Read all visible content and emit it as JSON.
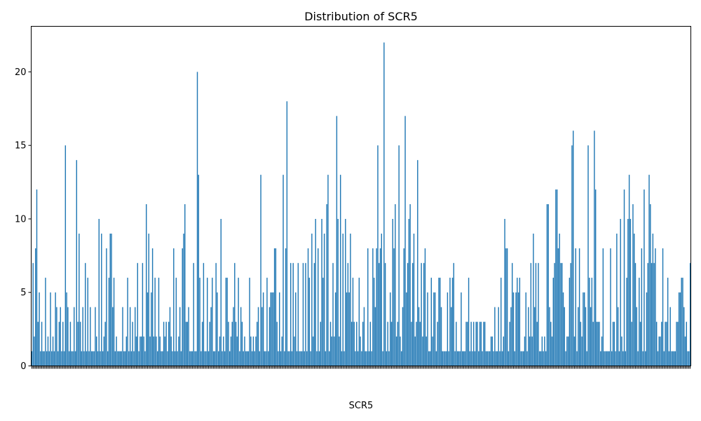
{
  "chart_data": {
    "type": "bar",
    "title": "Distribution of SCR5",
    "xlabel": "SCR5",
    "ylabel": "",
    "ylim": [
      0,
      23.1
    ],
    "yticks": [
      0,
      5,
      10,
      15,
      20
    ],
    "bar_color": "#1f77b4",
    "grid": false,
    "values": [
      1,
      7,
      2,
      8,
      12,
      3,
      5,
      1,
      3,
      1,
      1,
      6,
      1,
      2,
      1,
      5,
      1,
      2,
      1,
      5,
      4,
      1,
      3,
      4,
      1,
      3,
      1,
      15,
      5,
      4,
      1,
      3,
      1,
      1,
      4,
      1,
      14,
      3,
      9,
      3,
      1,
      4,
      1,
      7,
      1,
      6,
      1,
      4,
      1,
      1,
      1,
      4,
      2,
      1,
      10,
      1,
      9,
      1,
      2,
      3,
      8,
      1,
      6,
      9,
      9,
      4,
      6,
      1,
      2,
      1,
      1,
      1,
      1,
      4,
      1,
      1,
      2,
      6,
      1,
      4,
      1,
      3,
      1,
      4,
      2,
      7,
      1,
      2,
      2,
      7,
      2,
      1,
      11,
      5,
      9,
      2,
      5,
      8,
      2,
      6,
      2,
      1,
      6,
      2,
      1,
      1,
      3,
      2,
      3,
      1,
      3,
      4,
      2,
      1,
      8,
      1,
      6,
      1,
      2,
      4,
      1,
      8,
      9,
      11,
      3,
      3,
      4,
      1,
      1,
      1,
      7,
      1,
      1,
      20,
      13,
      6,
      1,
      3,
      7,
      1,
      1,
      6,
      1,
      3,
      4,
      6,
      1,
      1,
      7,
      5,
      1,
      2,
      10,
      1,
      2,
      1,
      6,
      6,
      3,
      1,
      2,
      3,
      4,
      7,
      3,
      2,
      6,
      1,
      4,
      3,
      1,
      2,
      1,
      1,
      1,
      6,
      2,
      1,
      2,
      1,
      2,
      3,
      4,
      1,
      13,
      4,
      5,
      1,
      1,
      6,
      1,
      4,
      5,
      5,
      5,
      8,
      8,
      3,
      1,
      5,
      1,
      2,
      13,
      1,
      8,
      18,
      1,
      1,
      7,
      1,
      7,
      2,
      5,
      1,
      7,
      1,
      1,
      1,
      7,
      1,
      7,
      1,
      8,
      6,
      1,
      9,
      2,
      7,
      10,
      1,
      8,
      1,
      3,
      10,
      6,
      9,
      1,
      11,
      13,
      1,
      3,
      2,
      7,
      2,
      5,
      17,
      10,
      2,
      13,
      1,
      9,
      1,
      10,
      5,
      7,
      5,
      9,
      3,
      6,
      3,
      1,
      3,
      1,
      6,
      2,
      1,
      3,
      4,
      1,
      1,
      8,
      1,
      3,
      1,
      8,
      6,
      4,
      8,
      15,
      7,
      8,
      9,
      1,
      22,
      7,
      1,
      3,
      1,
      5,
      3,
      10,
      8,
      11,
      2,
      3,
      15,
      2,
      1,
      4,
      8,
      17,
      5,
      7,
      10,
      11,
      3,
      7,
      9,
      2,
      3,
      14,
      4,
      3,
      7,
      2,
      7,
      8,
      2,
      5,
      1,
      1,
      6,
      2,
      5,
      5,
      1,
      3,
      6,
      6,
      4,
      1,
      1,
      1,
      1,
      5,
      1,
      6,
      4,
      6,
      7,
      1,
      3,
      1,
      1,
      1,
      5,
      1,
      1,
      1,
      3,
      3,
      6,
      1,
      3,
      1,
      3,
      1,
      3,
      3,
      1,
      3,
      3,
      1,
      3,
      3,
      1,
      1,
      1,
      1,
      2,
      2,
      1,
      4,
      1,
      1,
      4,
      1,
      6,
      1,
      2,
      10,
      8,
      8,
      1,
      3,
      4,
      7,
      5,
      1,
      5,
      6,
      5,
      6,
      1,
      1,
      1,
      2,
      5,
      1,
      4,
      2,
      7,
      2,
      9,
      4,
      7,
      3,
      7,
      1,
      1,
      2,
      1,
      2,
      1,
      11,
      11,
      4,
      3,
      2,
      6,
      7,
      12,
      12,
      8,
      9,
      7,
      7,
      5,
      4,
      1,
      2,
      2,
      6,
      7,
      15,
      16,
      2,
      8,
      1,
      4,
      8,
      3,
      2,
      5,
      5,
      4,
      1,
      15,
      6,
      4,
      6,
      3,
      16,
      12,
      3,
      3,
      3,
      1,
      2,
      8,
      1,
      1,
      1,
      1,
      1,
      8,
      1,
      3,
      3,
      1,
      9,
      4,
      1,
      10,
      2,
      1,
      12,
      1,
      6,
      10,
      13,
      10,
      3,
      11,
      9,
      7,
      4,
      1,
      6,
      3,
      8,
      1,
      12,
      1,
      5,
      7,
      13,
      11,
      7,
      9,
      7,
      8,
      3,
      1,
      2,
      2,
      3,
      8,
      1,
      3,
      3,
      6,
      1,
      4,
      1,
      1,
      1,
      1,
      3,
      3,
      5,
      5,
      6,
      6,
      4,
      2,
      3,
      1,
      1,
      7
    ]
  }
}
